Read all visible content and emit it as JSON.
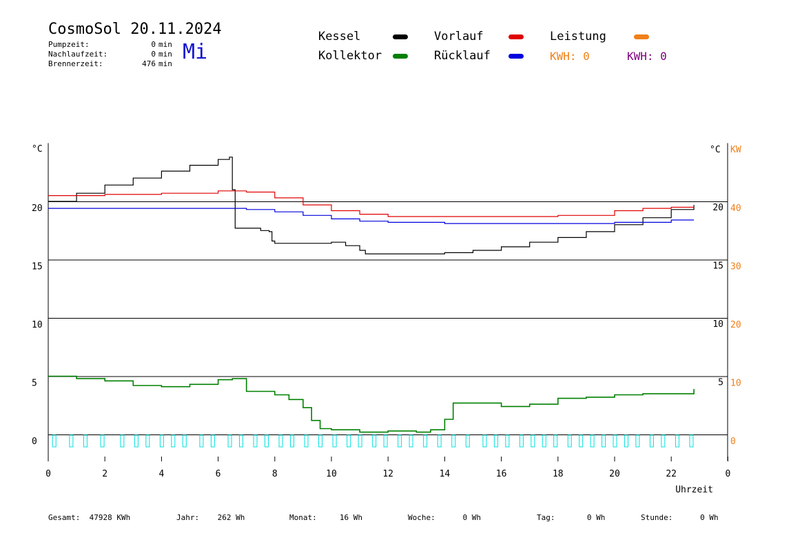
{
  "header": {
    "title": "CosmoSol 20.11.2024",
    "weekday": "Mi",
    "stats": [
      {
        "label": "Pumpzeit:",
        "value": "0",
        "unit": "min"
      },
      {
        "label": "Nachlaufzeit:",
        "value": "0",
        "unit": "min"
      },
      {
        "label": "Brennerzeit:",
        "value": "476",
        "unit": "min"
      }
    ]
  },
  "legend": {
    "kessel": "Kessel",
    "vorlauf": "Vorlauf",
    "leistung": "Leistung",
    "kollektor": "Kollektor",
    "ruecklauf": "Rücklauf",
    "kwh1": "KWH: 0",
    "kwh2": "KWH: 0"
  },
  "colors": {
    "kessel": "#000000",
    "vorlauf": "#e00000",
    "leistung": "#f08018",
    "kollektor": "#008000",
    "ruecklauf": "#0000dd",
    "pump": "#00e0e0",
    "kwh1": "#f08018",
    "kwh2": "#800080"
  },
  "footer": [
    {
      "label": "Gesamt:",
      "value": "47928 KWh"
    },
    {
      "label": "Jahr:",
      "value": "262 Wh"
    },
    {
      "label": "Monat:",
      "value": "16 Wh"
    },
    {
      "label": "Woche:",
      "value": "0 Wh"
    },
    {
      "label": "Tag:",
      "value": "0 Wh"
    },
    {
      "label": "Stunde:",
      "value": "0 Wh"
    }
  ],
  "chart_data": {
    "type": "line",
    "xlabel": "Uhrzeit",
    "x_ticks": [
      "0",
      "2",
      "4",
      "6",
      "8",
      "10",
      "12",
      "14",
      "16",
      "18",
      "20",
      "22",
      "0"
    ],
    "xlim": [
      0,
      24
    ],
    "y_left_label": "°C",
    "y_left_ticks": [
      "0",
      "5",
      "10",
      "15",
      "20"
    ],
    "y_right_label": "°C",
    "y_right_ticks": [
      "5",
      "10",
      "15",
      "20"
    ],
    "y_kw_label": "KW",
    "y_kw_ticks": [
      "0",
      "10",
      "20",
      "30",
      "40"
    ],
    "ylim": [
      0,
      25
    ],
    "grid": true,
    "series": [
      {
        "name": "Kessel",
        "key": "kessel",
        "points": [
          [
            0,
            20
          ],
          [
            1,
            20.7
          ],
          [
            2,
            21.4
          ],
          [
            3,
            22
          ],
          [
            4,
            22.6
          ],
          [
            5,
            23.1
          ],
          [
            6,
            23.6
          ],
          [
            6.4,
            23.8
          ],
          [
            6.5,
            21
          ],
          [
            6.6,
            17.7
          ],
          [
            7,
            17.7
          ],
          [
            7.5,
            17.5
          ],
          [
            7.8,
            17.4
          ],
          [
            7.9,
            16.6
          ],
          [
            8,
            16.4
          ],
          [
            9,
            16.4
          ],
          [
            10,
            16.5
          ],
          [
            10.5,
            16.2
          ],
          [
            11,
            15.8
          ],
          [
            11.2,
            15.5
          ],
          [
            12,
            15.5
          ],
          [
            13,
            15.5
          ],
          [
            14,
            15.6
          ],
          [
            15,
            15.8
          ],
          [
            16,
            16.1
          ],
          [
            17,
            16.5
          ],
          [
            18,
            16.9
          ],
          [
            19,
            17.4
          ],
          [
            20,
            18
          ],
          [
            21,
            18.6
          ],
          [
            22,
            19.3
          ],
          [
            22.8,
            19.7
          ]
        ]
      },
      {
        "name": "Vorlauf",
        "key": "vorlauf",
        "points": [
          [
            0,
            20.5
          ],
          [
            2,
            20.6
          ],
          [
            4,
            20.7
          ],
          [
            6,
            20.9
          ],
          [
            7,
            20.8
          ],
          [
            8,
            20.3
          ],
          [
            9,
            19.7
          ],
          [
            10,
            19.2
          ],
          [
            11,
            18.9
          ],
          [
            12,
            18.7
          ],
          [
            14,
            18.7
          ],
          [
            16,
            18.7
          ],
          [
            18,
            18.8
          ],
          [
            20,
            19.2
          ],
          [
            21,
            19.4
          ],
          [
            22,
            19.5
          ],
          [
            22.8,
            19.5
          ]
        ]
      },
      {
        "name": "Rücklauf",
        "key": "ruecklauf",
        "points": [
          [
            0,
            19.4
          ],
          [
            2,
            19.4
          ],
          [
            4,
            19.4
          ],
          [
            6,
            19.4
          ],
          [
            7,
            19.3
          ],
          [
            8,
            19.1
          ],
          [
            9,
            18.8
          ],
          [
            10,
            18.5
          ],
          [
            11,
            18.3
          ],
          [
            12,
            18.2
          ],
          [
            14,
            18.1
          ],
          [
            16,
            18.1
          ],
          [
            18,
            18.1
          ],
          [
            20,
            18.2
          ],
          [
            22,
            18.4
          ],
          [
            22.8,
            18.4
          ]
        ]
      },
      {
        "name": "Kollektor",
        "key": "kollektor",
        "points": [
          [
            0,
            5
          ],
          [
            1,
            4.8
          ],
          [
            2,
            4.6
          ],
          [
            3,
            4.2
          ],
          [
            4,
            4.1
          ],
          [
            5,
            4.3
          ],
          [
            6,
            4.7
          ],
          [
            6.5,
            4.8
          ],
          [
            7,
            3.7
          ],
          [
            8,
            3.4
          ],
          [
            8.5,
            3.0
          ],
          [
            9,
            2.3
          ],
          [
            9.3,
            1.2
          ],
          [
            9.6,
            0.5
          ],
          [
            10,
            0.4
          ],
          [
            11,
            0.2
          ],
          [
            12,
            0.3
          ],
          [
            13,
            0.2
          ],
          [
            13.5,
            0.4
          ],
          [
            14,
            1.3
          ],
          [
            14.3,
            2.7
          ],
          [
            15,
            2.7
          ],
          [
            16,
            2.4
          ],
          [
            17,
            2.6
          ],
          [
            18,
            3.1
          ],
          [
            19,
            3.2
          ],
          [
            20,
            3.4
          ],
          [
            21,
            3.5
          ],
          [
            22,
            3.5
          ],
          [
            22.8,
            3.9
          ]
        ]
      }
    ],
    "pump_markers_x": [
      0.2,
      0.8,
      1.3,
      1.9,
      2.6,
      3.1,
      3.5,
      4.0,
      4.4,
      4.8,
      5.4,
      5.8,
      6.4,
      6.8,
      7.3,
      7.7,
      8.2,
      8.6,
      9.1,
      9.6,
      10.1,
      10.6,
      11.0,
      11.5,
      11.9,
      12.4,
      12.8,
      13.3,
      13.8,
      14.3,
      14.8,
      15.4,
      15.8,
      16.2,
      16.7,
      17.1,
      17.5,
      17.9,
      18.4,
      18.8,
      19.2,
      19.6,
      20.0,
      20.4,
      20.8,
      21.3,
      21.7,
      22.2,
      22.7
    ]
  }
}
